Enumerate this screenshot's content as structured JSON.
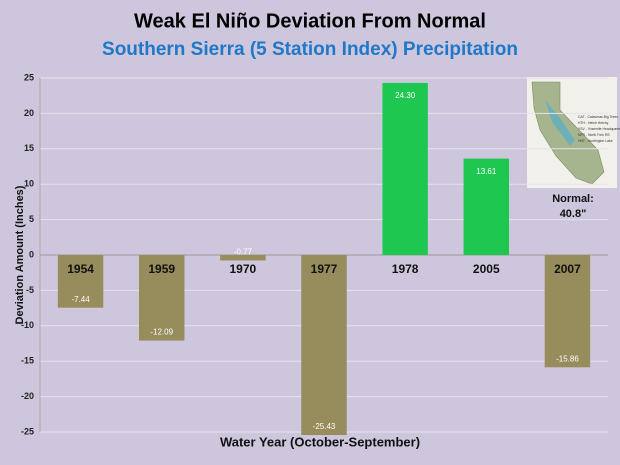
{
  "chart_data": {
    "type": "bar",
    "title": "Weak El Niño Deviation From Normal",
    "subtitle": "Southern Sierra (5 Station Index) Precipitation",
    "y_label": "Deviation Amount (Inches)",
    "x_label": "Water Year (October-September)",
    "categories": [
      "1954",
      "1959",
      "1970",
      "1977",
      "1978",
      "2005",
      "2007"
    ],
    "values": [
      -7.44,
      -12.09,
      -0.77,
      -25.43,
      24.3,
      13.61,
      -15.86
    ],
    "value_labels": [
      "-7.44",
      "-12.09",
      "-0.77",
      "-25.43",
      "24.30",
      "13.61",
      "-15.86"
    ],
    "colors": [
      "#968c5c",
      "#968c5c",
      "#968c5c",
      "#968c5c",
      "#1ec850",
      "#1ec850",
      "#968c5c"
    ],
    "ylim": [
      -25,
      25
    ],
    "yticks": [
      -25,
      -20,
      -15,
      -10,
      -5,
      0,
      5,
      10,
      15,
      20,
      25
    ],
    "grid": true,
    "annotation": [
      "Normal:",
      "40.8\""
    ],
    "inset_legend": [
      "CAT - Calaveras Big Trees",
      "HTH - Hetch Hetchy",
      "YSV - Yosemite Headquarters",
      "NFR - North Fork RS",
      "HNT - Huntington Lake"
    ]
  }
}
